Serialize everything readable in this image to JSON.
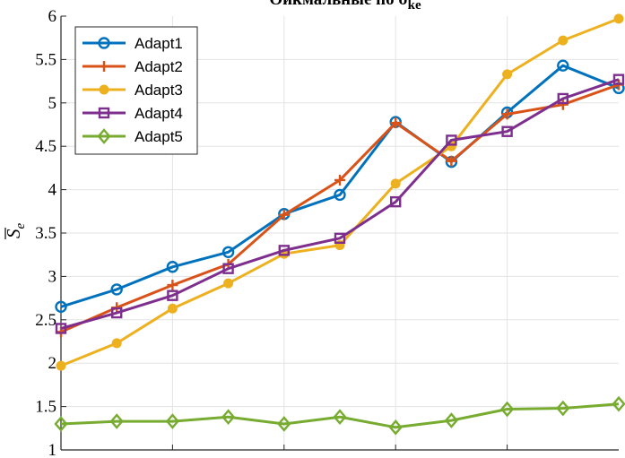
{
  "chart_data": {
    "type": "line",
    "title": "Ойкмальные по σ",
    "title_subscript": "ke",
    "xlabel": "",
    "ylabel": "S",
    "ylabel_subscript": "e",
    "ylim": [
      1,
      6
    ],
    "yticks": [
      1,
      1.5,
      2,
      2.5,
      3,
      3.5,
      4,
      4.5,
      5,
      5.5,
      6
    ],
    "ytick_labels": [
      "1",
      "1.5",
      "2",
      "2.5",
      "3",
      "3.5",
      "4",
      "4.5",
      "5",
      "5.5",
      "6"
    ],
    "xlim": [
      1,
      11
    ],
    "x": [
      1,
      2,
      3,
      4,
      5,
      6,
      7,
      8,
      9,
      10,
      11
    ],
    "grid": true,
    "legend_position": "top-left",
    "series": [
      {
        "name": "Adapt1",
        "color": "#0072BD",
        "marker": "circle",
        "values": [
          2.65,
          2.85,
          3.11,
          3.28,
          3.72,
          3.94,
          4.78,
          4.32,
          4.89,
          5.43,
          5.17
        ]
      },
      {
        "name": "Adapt2",
        "color": "#D95319",
        "marker": "plus",
        "values": [
          2.36,
          2.64,
          2.9,
          3.14,
          3.71,
          4.11,
          4.77,
          4.33,
          4.87,
          4.98,
          5.21
        ]
      },
      {
        "name": "Adapt3",
        "color": "#EDB120",
        "marker": "dot",
        "values": [
          1.97,
          2.23,
          2.63,
          2.92,
          3.26,
          3.36,
          4.07,
          4.5,
          5.33,
          5.72,
          5.97
        ]
      },
      {
        "name": "Adapt4",
        "color": "#7E2F8E",
        "marker": "square",
        "values": [
          2.4,
          2.58,
          2.78,
          3.09,
          3.3,
          3.44,
          3.86,
          4.57,
          4.67,
          5.05,
          5.27
        ]
      },
      {
        "name": "Adapt5",
        "color": "#77AC30",
        "marker": "diamond",
        "values": [
          1.3,
          1.33,
          1.33,
          1.38,
          1.3,
          1.38,
          1.26,
          1.34,
          1.47,
          1.48,
          1.53
        ]
      }
    ]
  }
}
